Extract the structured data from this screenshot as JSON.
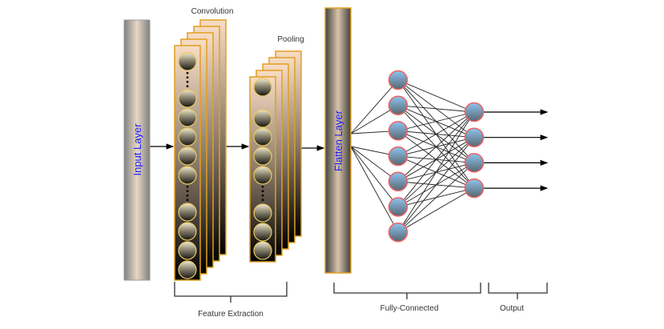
{
  "labels": {
    "convolution": "Convolution",
    "pooling": "Pooling",
    "input_layer": "Input Layer",
    "flatten_layer": "Flatten Layer",
    "feature_extraction": "Feature Extraction",
    "fully_connected": "Fully-Connected",
    "output": "Output"
  },
  "colors": {
    "card_border": "#e0a020",
    "node_border": "#f06060",
    "node_fill": "#7fa8d0",
    "label_blue": "#1a1aff"
  },
  "structure": {
    "conv_feature_maps": 5,
    "pool_feature_maps": 5,
    "hidden_nodes": 7,
    "output_nodes": 4
  }
}
